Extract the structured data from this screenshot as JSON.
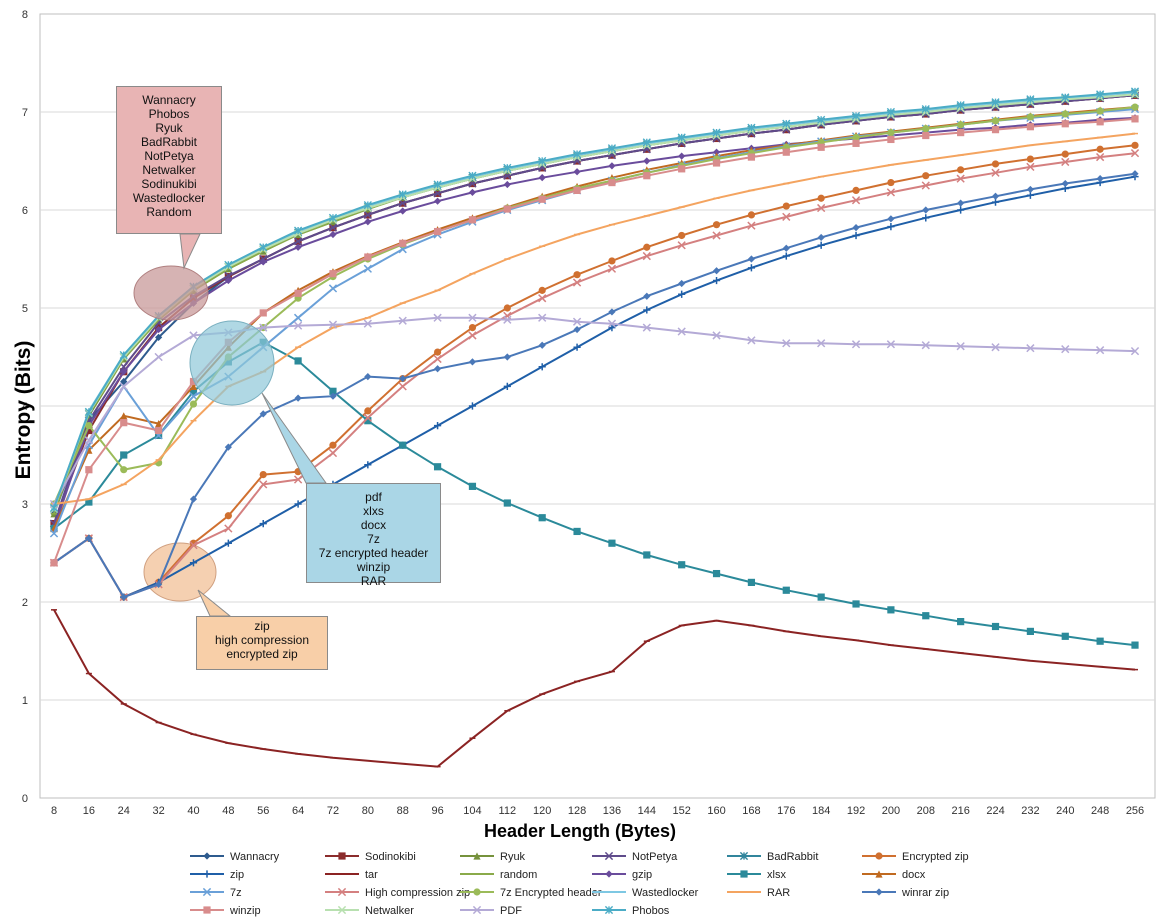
{
  "chart_data": {
    "type": "line",
    "title": "",
    "xlabel": "Header Length (Bytes)",
    "ylabel": "Entropy (Bits)",
    "ylim": [
      0,
      8
    ],
    "yticks": [
      0,
      1,
      2,
      3,
      4,
      5,
      6,
      7,
      8
    ],
    "x": [
      8,
      16,
      24,
      32,
      40,
      48,
      56,
      64,
      72,
      80,
      88,
      96,
      104,
      112,
      120,
      128,
      136,
      144,
      152,
      160,
      168,
      176,
      184,
      192,
      200,
      208,
      216,
      224,
      232,
      240,
      248,
      256
    ],
    "grid": "horizontal",
    "legend_position": "bottom",
    "series": [
      {
        "name": "Wannacry",
        "color": "#2e5b8e",
        "marker": "diamond",
        "values": [
          2.9,
          3.85,
          4.25,
          4.7,
          5.05,
          5.32,
          5.5,
          5.68,
          5.82,
          5.95,
          6.07,
          6.17,
          6.27,
          6.35,
          6.43,
          6.5,
          6.56,
          6.62,
          6.68,
          6.73,
          6.78,
          6.82,
          6.87,
          6.91,
          6.95,
          6.98,
          7.02,
          7.05,
          7.08,
          7.11,
          7.14,
          7.17
        ]
      },
      {
        "name": "Sodinokibi",
        "color": "#8b2c2c",
        "marker": "square",
        "values": [
          2.8,
          3.75,
          4.35,
          4.8,
          5.1,
          5.32,
          5.5,
          5.68,
          5.82,
          5.95,
          6.07,
          6.17,
          6.27,
          6.35,
          6.43,
          6.5,
          6.56,
          6.62,
          6.68,
          6.73,
          6.78,
          6.82,
          6.87,
          6.91,
          6.95,
          6.98,
          7.02,
          7.05,
          7.08,
          7.11,
          7.14,
          7.17
        ]
      },
      {
        "name": "Ryuk",
        "color": "#76923c",
        "marker": "triangle",
        "values": [
          2.9,
          3.9,
          4.48,
          4.88,
          5.18,
          5.4,
          5.58,
          5.75,
          5.88,
          6.01,
          6.13,
          6.23,
          6.32,
          6.4,
          6.47,
          6.54,
          6.6,
          6.66,
          6.71,
          6.76,
          6.81,
          6.85,
          6.89,
          6.93,
          6.97,
          7.0,
          7.04,
          7.07,
          7.1,
          7.13,
          7.15,
          7.18
        ]
      },
      {
        "name": "NotPetya",
        "color": "#5f4b8b",
        "marker": "x",
        "values": [
          2.8,
          3.85,
          4.4,
          4.85,
          5.12,
          5.33,
          5.5,
          5.68,
          5.82,
          5.95,
          6.07,
          6.17,
          6.27,
          6.35,
          6.43,
          6.5,
          6.56,
          6.62,
          6.68,
          6.73,
          6.78,
          6.82,
          6.87,
          6.91,
          6.95,
          6.98,
          7.02,
          7.05,
          7.08,
          7.11,
          7.14,
          7.17
        ]
      },
      {
        "name": "BadRabbit",
        "color": "#31859c",
        "marker": "star",
        "values": [
          2.95,
          3.92,
          4.5,
          4.9,
          5.2,
          5.42,
          5.6,
          5.77,
          5.9,
          6.03,
          6.14,
          6.24,
          6.33,
          6.41,
          6.48,
          6.55,
          6.61,
          6.67,
          6.72,
          6.77,
          6.82,
          6.86,
          6.9,
          6.94,
          6.98,
          7.01,
          7.05,
          7.08,
          7.11,
          7.14,
          7.16,
          7.19
        ]
      },
      {
        "name": "Encrypted zip",
        "color": "#d07030",
        "marker": "circle",
        "values": [
          2.4,
          2.65,
          2.05,
          2.2,
          2.6,
          2.88,
          3.3,
          3.33,
          3.6,
          3.95,
          4.28,
          4.55,
          4.8,
          5.0,
          5.18,
          5.34,
          5.48,
          5.62,
          5.74,
          5.85,
          5.95,
          6.04,
          6.12,
          6.2,
          6.28,
          6.35,
          6.41,
          6.47,
          6.52,
          6.57,
          6.62,
          6.66
        ]
      },
      {
        "name": "zip",
        "color": "#1f5fa8",
        "marker": "plus",
        "values": [
          2.4,
          2.65,
          2.05,
          2.2,
          2.4,
          2.6,
          2.8,
          3.0,
          3.2,
          3.4,
          3.6,
          3.8,
          4.0,
          4.2,
          4.4,
          4.6,
          4.8,
          4.98,
          5.14,
          5.28,
          5.41,
          5.53,
          5.64,
          5.74,
          5.83,
          5.92,
          6.0,
          6.08,
          6.15,
          6.22,
          6.28,
          6.34
        ]
      },
      {
        "name": "tar",
        "color": "#8b2323",
        "marker": "dash",
        "values": [
          1.92,
          1.27,
          0.96,
          0.77,
          0.65,
          0.56,
          0.5,
          0.45,
          0.41,
          0.38,
          0.35,
          0.32,
          0.61,
          0.89,
          1.06,
          1.19,
          1.29,
          1.6,
          1.76,
          1.81,
          1.76,
          1.7,
          1.65,
          1.61,
          1.56,
          1.52,
          1.48,
          1.44,
          1.4,
          1.37,
          1.34,
          1.31
        ]
      },
      {
        "name": "random",
        "color": "#8aaa4a",
        "marker": "dash",
        "values": [
          2.9,
          3.92,
          4.48,
          4.88,
          5.18,
          5.4,
          5.58,
          5.75,
          5.88,
          6.01,
          6.13,
          6.23,
          6.32,
          6.4,
          6.47,
          6.54,
          6.6,
          6.66,
          6.71,
          6.76,
          6.81,
          6.85,
          6.89,
          6.93,
          6.97,
          7.0,
          7.04,
          7.07,
          7.1,
          7.13,
          7.15,
          7.18
        ]
      },
      {
        "name": "gzip",
        "color": "#6a4c9c",
        "marker": "diamond",
        "values": [
          2.75,
          3.8,
          4.35,
          4.78,
          5.05,
          5.28,
          5.47,
          5.62,
          5.75,
          5.88,
          5.99,
          6.09,
          6.18,
          6.26,
          6.33,
          6.39,
          6.45,
          6.5,
          6.55,
          6.59,
          6.63,
          6.67,
          6.7,
          6.73,
          6.76,
          6.79,
          6.82,
          6.84,
          6.87,
          6.89,
          6.92,
          6.94
        ]
      },
      {
        "name": "xlsx",
        "color": "#2b8a9a",
        "marker": "square",
        "values": [
          2.75,
          3.02,
          3.5,
          3.7,
          4.15,
          4.45,
          4.65,
          4.46,
          4.15,
          3.85,
          3.6,
          3.38,
          3.18,
          3.01,
          2.86,
          2.72,
          2.6,
          2.48,
          2.38,
          2.29,
          2.2,
          2.12,
          2.05,
          1.98,
          1.92,
          1.86,
          1.8,
          1.75,
          1.7,
          1.65,
          1.6,
          1.56
        ]
      },
      {
        "name": "docx",
        "color": "#c06a20",
        "marker": "triangle",
        "values": [
          2.75,
          3.55,
          3.9,
          3.82,
          4.2,
          4.6,
          4.95,
          5.18,
          5.37,
          5.53,
          5.67,
          5.8,
          5.92,
          6.03,
          6.14,
          6.24,
          6.33,
          6.41,
          6.48,
          6.55,
          6.61,
          6.66,
          6.71,
          6.76,
          6.8,
          6.84,
          6.88,
          6.92,
          6.96,
          6.99,
          7.02,
          7.05
        ]
      },
      {
        "name": "7z",
        "color": "#6aa0d8",
        "marker": "x",
        "values": [
          2.7,
          3.6,
          4.2,
          3.7,
          4.1,
          4.3,
          4.6,
          4.9,
          5.2,
          5.4,
          5.6,
          5.75,
          5.88,
          6.0,
          6.1,
          6.2,
          6.3,
          6.38,
          6.46,
          6.53,
          6.59,
          6.65,
          6.7,
          6.75,
          6.79,
          6.83,
          6.87,
          6.91,
          6.94,
          6.97,
          7.0,
          7.03
        ]
      },
      {
        "name": "High compression zip",
        "color": "#d48080",
        "marker": "x",
        "values": [
          2.4,
          2.65,
          2.05,
          2.18,
          2.58,
          2.75,
          3.2,
          3.25,
          3.52,
          3.88,
          4.2,
          4.48,
          4.72,
          4.92,
          5.1,
          5.26,
          5.4,
          5.53,
          5.64,
          5.74,
          5.84,
          5.93,
          6.02,
          6.1,
          6.18,
          6.25,
          6.32,
          6.38,
          6.44,
          6.49,
          6.54,
          6.58
        ]
      },
      {
        "name": "7z Encrypted header",
        "color": "#9bbb59",
        "marker": "circle",
        "values": [
          3.0,
          3.8,
          3.35,
          3.42,
          4.02,
          4.5,
          4.8,
          5.1,
          5.32,
          5.5,
          5.65,
          5.78,
          5.9,
          6.02,
          6.12,
          6.22,
          6.3,
          6.38,
          6.45,
          6.52,
          6.58,
          6.64,
          6.69,
          6.74,
          6.79,
          6.83,
          6.87,
          6.91,
          6.95,
          6.98,
          7.01,
          7.05
        ]
      },
      {
        "name": "Wastedlocker",
        "color": "#7ec8e3",
        "marker": "dash",
        "values": [
          2.95,
          3.95,
          4.52,
          4.92,
          5.22,
          5.44,
          5.62,
          5.78,
          5.92,
          6.04,
          6.15,
          6.25,
          6.34,
          6.42,
          6.49,
          6.56,
          6.62,
          6.68,
          6.73,
          6.78,
          6.83,
          6.87,
          6.91,
          6.95,
          6.99,
          7.02,
          7.06,
          7.09,
          7.12,
          7.14,
          7.17,
          7.2
        ]
      },
      {
        "name": "RAR",
        "color": "#f4a460",
        "marker": "dash",
        "values": [
          3.0,
          3.05,
          3.2,
          3.45,
          3.85,
          4.2,
          4.35,
          4.6,
          4.8,
          4.9,
          5.05,
          5.18,
          5.35,
          5.5,
          5.63,
          5.75,
          5.85,
          5.94,
          6.03,
          6.12,
          6.2,
          6.27,
          6.34,
          6.4,
          6.46,
          6.51,
          6.56,
          6.61,
          6.66,
          6.7,
          6.74,
          6.78
        ]
      },
      {
        "name": "winrar zip",
        "color": "#4a78b8",
        "marker": "diamond",
        "values": [
          2.4,
          2.65,
          2.05,
          2.18,
          3.05,
          3.58,
          3.92,
          4.08,
          4.1,
          4.3,
          4.28,
          4.38,
          4.45,
          4.5,
          4.62,
          4.78,
          4.96,
          5.12,
          5.25,
          5.38,
          5.5,
          5.61,
          5.72,
          5.82,
          5.91,
          6.0,
          6.07,
          6.14,
          6.21,
          6.27,
          6.32,
          6.37
        ]
      },
      {
        "name": "winzip",
        "color": "#d88c8c",
        "marker": "square",
        "values": [
          2.4,
          3.35,
          3.83,
          3.75,
          4.25,
          4.65,
          4.95,
          5.15,
          5.35,
          5.52,
          5.66,
          5.78,
          5.9,
          6.01,
          6.11,
          6.2,
          6.28,
          6.35,
          6.42,
          6.48,
          6.54,
          6.59,
          6.64,
          6.68,
          6.72,
          6.76,
          6.79,
          6.82,
          6.85,
          6.88,
          6.9,
          6.93
        ]
      },
      {
        "name": "Netwalker",
        "color": "#b8e0b0",
        "marker": "x",
        "values": [
          2.95,
          3.93,
          4.5,
          4.9,
          5.2,
          5.42,
          5.6,
          5.76,
          5.9,
          6.02,
          6.13,
          6.23,
          6.32,
          6.4,
          6.47,
          6.54,
          6.6,
          6.66,
          6.71,
          6.76,
          6.81,
          6.85,
          6.89,
          6.93,
          6.97,
          7.0,
          7.04,
          7.07,
          7.1,
          7.13,
          7.15,
          7.18
        ]
      },
      {
        "name": "PDF",
        "color": "#b4aad6",
        "marker": "x",
        "values": [
          3.0,
          3.65,
          4.2,
          4.5,
          4.72,
          4.75,
          4.8,
          4.82,
          4.83,
          4.84,
          4.87,
          4.9,
          4.9,
          4.88,
          4.9,
          4.86,
          4.84,
          4.8,
          4.76,
          4.72,
          4.67,
          4.64,
          4.64,
          4.63,
          4.63,
          4.62,
          4.61,
          4.6,
          4.59,
          4.58,
          4.57,
          4.56
        ]
      },
      {
        "name": "Phobos",
        "color": "#4bacc6",
        "marker": "star",
        "values": [
          2.96,
          3.94,
          4.52,
          4.92,
          5.22,
          5.44,
          5.62,
          5.79,
          5.92,
          6.05,
          6.16,
          6.26,
          6.35,
          6.43,
          6.5,
          6.57,
          6.63,
          6.69,
          6.74,
          6.79,
          6.84,
          6.88,
          6.92,
          6.96,
          7.0,
          7.03,
          7.07,
          7.1,
          7.13,
          7.15,
          7.18,
          7.21
        ]
      }
    ]
  },
  "annotations": [
    {
      "lines": [
        "Wannacry",
        "Phobos",
        "Ryuk",
        "BadRabbit",
        "NotPetya",
        "Netwalker",
        "Sodinukibi",
        "Wastedlocker",
        "Random"
      ]
    },
    {
      "lines": [
        "pdf",
        "xlxs",
        "docx",
        "7z",
        "7z encrypted header",
        "winzip",
        "RAR"
      ]
    },
    {
      "lines": [
        "zip",
        "high compression",
        "encrypted zip"
      ]
    }
  ],
  "colors": {
    "axis": "#bfbfbf",
    "grid": "#d9d9d9",
    "highlight_red": "#c89a9a",
    "highlight_blue": "#8ec8d8",
    "highlight_orange": "#f2c49e"
  }
}
